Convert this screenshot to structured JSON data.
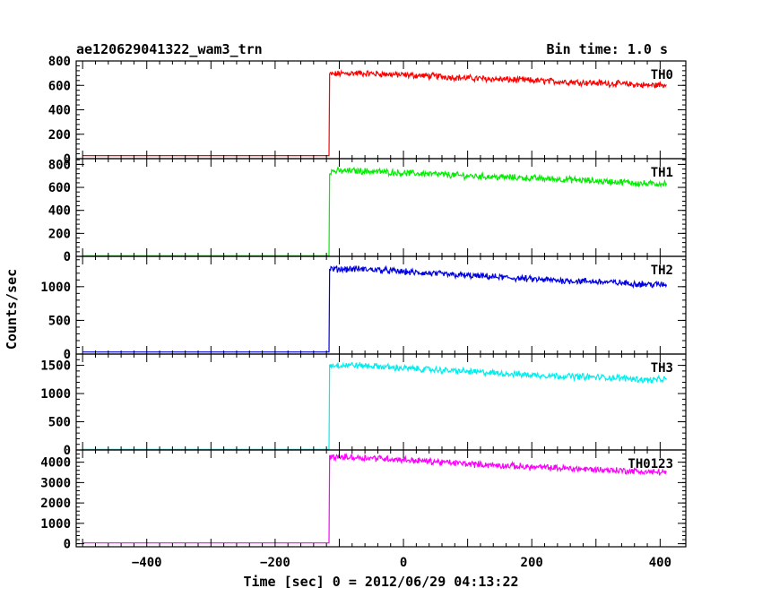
{
  "chart_data": {
    "type": "line",
    "header_left": "ae120629041322_wam3_trn",
    "header_right": "Bin time: 1.0 s",
    "xlabel": "Time [sec] 0 = 2012/06/29 04:13:22",
    "ylabel": "Counts/sec",
    "xlim": [
      -510,
      440
    ],
    "x_ticks": [
      -400,
      -200,
      0,
      200,
      400
    ],
    "x_tick_labels": [
      "−400",
      "−200",
      "0",
      "200",
      "400"
    ],
    "panels": [
      {
        "name": "TH0",
        "color": "#ff0000",
        "ylim": [
          0,
          800
        ],
        "y_ticks": [
          0,
          200,
          400,
          600,
          800
        ],
        "y_tick_labels": [
          "0",
          "200",
          "400",
          "600",
          "800"
        ],
        "step_time": -115,
        "series": [
          {
            "x": -500,
            "y": 25
          },
          {
            "x": -116,
            "y": 25
          },
          {
            "x": -115,
            "y": 690
          },
          {
            "x": -80,
            "y": 700
          },
          {
            "x": -40,
            "y": 695
          },
          {
            "x": 0,
            "y": 685
          },
          {
            "x": 50,
            "y": 675
          },
          {
            "x": 100,
            "y": 660
          },
          {
            "x": 150,
            "y": 650
          },
          {
            "x": 200,
            "y": 640
          },
          {
            "x": 250,
            "y": 630
          },
          {
            "x": 300,
            "y": 620
          },
          {
            "x": 350,
            "y": 610
          },
          {
            "x": 380,
            "y": 600
          },
          {
            "x": 410,
            "y": 605
          }
        ]
      },
      {
        "name": "TH1",
        "color": "#00ee00",
        "ylim": [
          0,
          850
        ],
        "y_ticks": [
          0,
          200,
          400,
          600,
          800
        ],
        "y_tick_labels": [
          "0",
          "200",
          "400",
          "600",
          "800"
        ],
        "step_time": -115,
        "series": [
          {
            "x": -500,
            "y": 5
          },
          {
            "x": -116,
            "y": 5
          },
          {
            "x": -115,
            "y": 740
          },
          {
            "x": -80,
            "y": 745
          },
          {
            "x": -40,
            "y": 738
          },
          {
            "x": 0,
            "y": 725
          },
          {
            "x": 50,
            "y": 715
          },
          {
            "x": 100,
            "y": 700
          },
          {
            "x": 150,
            "y": 690
          },
          {
            "x": 200,
            "y": 680
          },
          {
            "x": 250,
            "y": 670
          },
          {
            "x": 300,
            "y": 655
          },
          {
            "x": 350,
            "y": 645
          },
          {
            "x": 380,
            "y": 630
          },
          {
            "x": 410,
            "y": 635
          }
        ]
      },
      {
        "name": "TH2",
        "color": "#0000e0",
        "ylim": [
          0,
          1450
        ],
        "y_ticks": [
          0,
          500,
          1000
        ],
        "y_tick_labels": [
          "0",
          "500",
          "1000"
        ],
        "step_time": -115,
        "series": [
          {
            "x": -500,
            "y": 30
          },
          {
            "x": -116,
            "y": 30
          },
          {
            "x": -115,
            "y": 1260
          },
          {
            "x": -80,
            "y": 1265
          },
          {
            "x": -40,
            "y": 1250
          },
          {
            "x": 0,
            "y": 1220
          },
          {
            "x": 50,
            "y": 1190
          },
          {
            "x": 100,
            "y": 1165
          },
          {
            "x": 150,
            "y": 1140
          },
          {
            "x": 200,
            "y": 1110
          },
          {
            "x": 250,
            "y": 1090
          },
          {
            "x": 300,
            "y": 1075
          },
          {
            "x": 350,
            "y": 1050
          },
          {
            "x": 380,
            "y": 1035
          },
          {
            "x": 410,
            "y": 1030
          }
        ]
      },
      {
        "name": "TH3",
        "color": "#00eeee",
        "ylim": [
          0,
          1700
        ],
        "y_ticks": [
          0,
          500,
          1000,
          1500
        ],
        "y_tick_labels": [
          "0",
          "500",
          "1000",
          "1500"
        ],
        "step_time": -115,
        "series": [
          {
            "x": -500,
            "y": 10
          },
          {
            "x": -116,
            "y": 10
          },
          {
            "x": -115,
            "y": 1500
          },
          {
            "x": -80,
            "y": 1505
          },
          {
            "x": -40,
            "y": 1480
          },
          {
            "x": 0,
            "y": 1450
          },
          {
            "x": 50,
            "y": 1420
          },
          {
            "x": 100,
            "y": 1390
          },
          {
            "x": 150,
            "y": 1360
          },
          {
            "x": 200,
            "y": 1330
          },
          {
            "x": 250,
            "y": 1310
          },
          {
            "x": 300,
            "y": 1290
          },
          {
            "x": 350,
            "y": 1270
          },
          {
            "x": 380,
            "y": 1240
          },
          {
            "x": 410,
            "y": 1250
          }
        ]
      },
      {
        "name": "TH0123",
        "color": "#ff00ff",
        "ylim": [
          -150,
          4600
        ],
        "y_ticks": [
          0,
          1000,
          2000,
          3000,
          4000
        ],
        "y_tick_labels": [
          "0",
          "1000",
          "2000",
          "3000",
          "4000"
        ],
        "step_time": -115,
        "series": [
          {
            "x": -500,
            "y": 40
          },
          {
            "x": -116,
            "y": 40
          },
          {
            "x": -115,
            "y": 4250
          },
          {
            "x": -80,
            "y": 4240
          },
          {
            "x": -40,
            "y": 4200
          },
          {
            "x": 0,
            "y": 4120
          },
          {
            "x": 50,
            "y": 4020
          },
          {
            "x": 100,
            "y": 3920
          },
          {
            "x": 150,
            "y": 3840
          },
          {
            "x": 200,
            "y": 3760
          },
          {
            "x": 250,
            "y": 3700
          },
          {
            "x": 300,
            "y": 3640
          },
          {
            "x": 350,
            "y": 3580
          },
          {
            "x": 380,
            "y": 3520
          },
          {
            "x": 410,
            "y": 3510
          }
        ]
      }
    ]
  }
}
